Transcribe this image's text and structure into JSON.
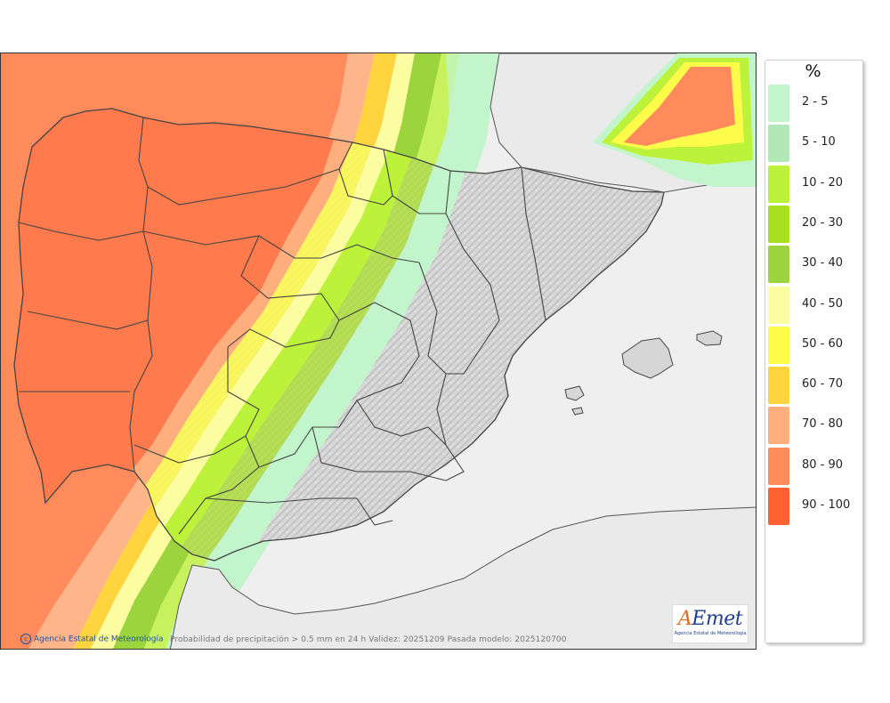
{
  "legend": {
    "title": "%",
    "items": [
      {
        "label": "2 - 5",
        "color": "#c2f5cc"
      },
      {
        "label": "5 - 10",
        "color": "#b2e8b8"
      },
      {
        "label": "10 - 20",
        "color": "#bdf23a"
      },
      {
        "label": "20 - 30",
        "color": "#a6e020"
      },
      {
        "label": "30 - 40",
        "color": "#9cd43e"
      },
      {
        "label": "40 - 50",
        "color": "#fcfca0"
      },
      {
        "label": "50 - 60",
        "color": "#fffb4a"
      },
      {
        "label": "60 - 70",
        "color": "#ffd43e"
      },
      {
        "label": "70 - 80",
        "color": "#ffae7e"
      },
      {
        "label": "80 - 90",
        "color": "#ff8a5c"
      },
      {
        "label": "90 - 100",
        "color": "#ff6132"
      }
    ]
  },
  "footer": {
    "credit": "Agencia Estatal de Meteorología",
    "info": "Probabilidad de precipitación > 0.5 mm en 24 h Validez: 20251209 Pasada modelo: 2025120700"
  },
  "logo": {
    "name": "AEmet",
    "subtitle": "Agencia Estatal de Meteorología"
  },
  "colors": {
    "sea": "#efefef",
    "land_dry": "#cfcfcf",
    "borders": "#444444"
  }
}
